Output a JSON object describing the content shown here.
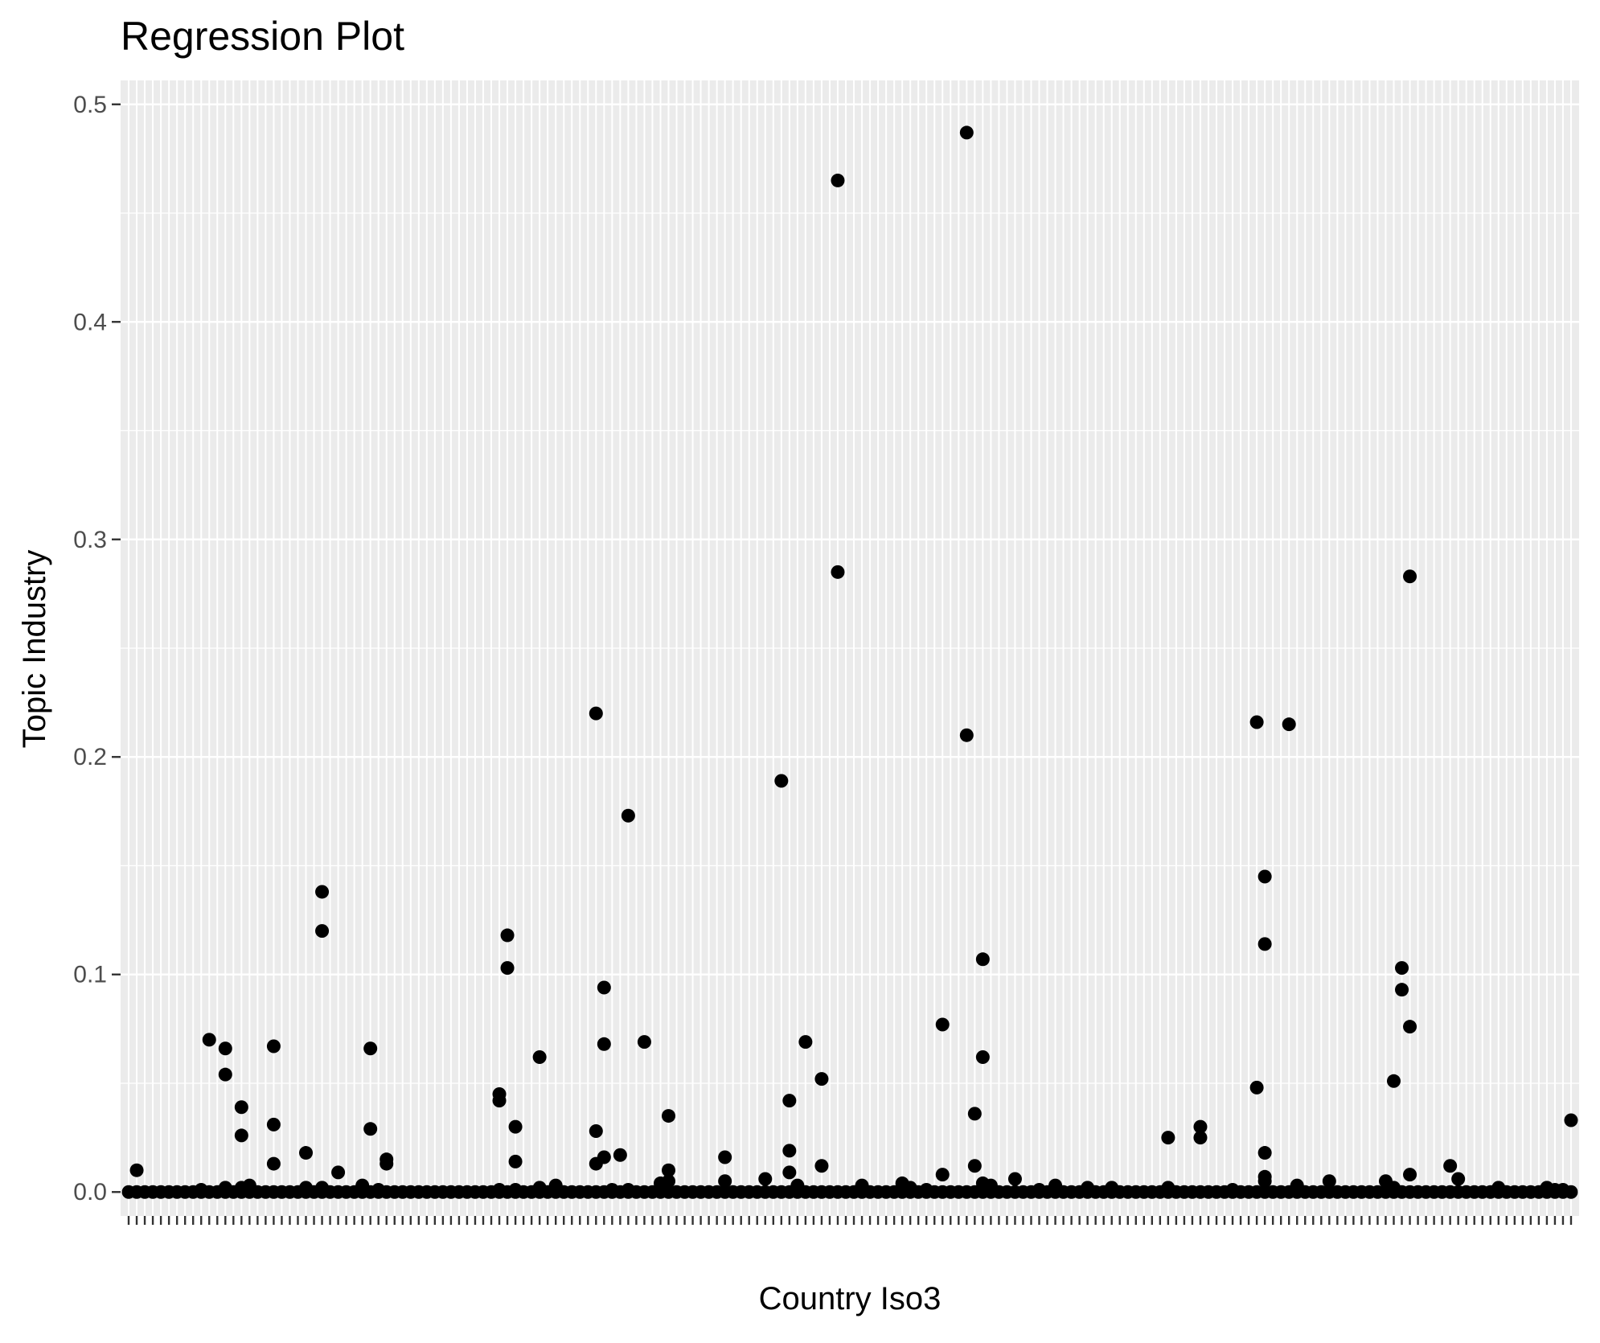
{
  "chart_data": {
    "type": "scatter",
    "title": "Regression Plot",
    "xlabel": "Country Iso3",
    "ylabel": "Topic Industry",
    "x_type": "categorical",
    "category_count": 180,
    "category_labels": [],
    "y_ticks": [
      0.0,
      0.1,
      0.2,
      0.3,
      0.4,
      0.5
    ],
    "y_tick_labels": [
      "0.0",
      "0.1",
      "0.2",
      "0.3",
      "0.4",
      "0.5"
    ],
    "ylim": [
      -0.011,
      0.511
    ],
    "grid": true,
    "legend": "none",
    "colors": {
      "panel_background": "#ebebeb",
      "grid_major": "#ffffff",
      "point": "#000000",
      "tick_label": "#4d4d4d"
    },
    "points": [
      [
        1,
        0.0
      ],
      [
        2,
        0.0
      ],
      [
        2,
        0.01
      ],
      [
        3,
        0.0
      ],
      [
        4,
        0.0
      ],
      [
        5,
        0.0
      ],
      [
        6,
        0.0
      ],
      [
        7,
        0.0
      ],
      [
        8,
        0.0
      ],
      [
        9,
        0.0
      ],
      [
        10,
        0.0
      ],
      [
        10,
        0.001
      ],
      [
        11,
        0.0
      ],
      [
        11,
        0.07
      ],
      [
        12,
        0.0
      ],
      [
        13,
        0.0
      ],
      [
        13,
        0.002
      ],
      [
        13,
        0.054
      ],
      [
        13,
        0.066
      ],
      [
        14,
        0.0
      ],
      [
        15,
        0.0
      ],
      [
        15,
        0.002
      ],
      [
        15,
        0.026
      ],
      [
        15,
        0.039
      ],
      [
        16,
        0.0
      ],
      [
        16,
        0.003
      ],
      [
        17,
        0.0
      ],
      [
        18,
        0.0
      ],
      [
        19,
        0.0
      ],
      [
        19,
        0.013
      ],
      [
        19,
        0.031
      ],
      [
        19,
        0.067
      ],
      [
        20,
        0.0
      ],
      [
        21,
        0.0
      ],
      [
        22,
        0.0
      ],
      [
        23,
        0.0
      ],
      [
        23,
        0.002
      ],
      [
        23,
        0.018
      ],
      [
        24,
        0.0
      ],
      [
        25,
        0.0
      ],
      [
        25,
        0.002
      ],
      [
        25,
        0.12
      ],
      [
        25,
        0.138
      ],
      [
        26,
        0.0
      ],
      [
        27,
        0.0
      ],
      [
        27,
        0.009
      ],
      [
        28,
        0.0
      ],
      [
        29,
        0.0
      ],
      [
        30,
        0.0
      ],
      [
        30,
        0.003
      ],
      [
        31,
        0.0
      ],
      [
        31,
        0.029
      ],
      [
        31,
        0.066
      ],
      [
        32,
        0.0
      ],
      [
        32,
        0.001
      ],
      [
        33,
        0.0
      ],
      [
        33,
        0.013
      ],
      [
        33,
        0.015
      ],
      [
        34,
        0.0
      ],
      [
        35,
        0.0
      ],
      [
        36,
        0.0
      ],
      [
        37,
        0.0
      ],
      [
        38,
        0.0
      ],
      [
        39,
        0.0
      ],
      [
        40,
        0.0
      ],
      [
        41,
        0.0
      ],
      [
        42,
        0.0
      ],
      [
        43,
        0.0
      ],
      [
        44,
        0.0
      ],
      [
        45,
        0.0
      ],
      [
        46,
        0.0
      ],
      [
        47,
        0.0
      ],
      [
        47,
        0.001
      ],
      [
        47,
        0.042
      ],
      [
        47,
        0.045
      ],
      [
        48,
        0.0
      ],
      [
        48,
        0.103
      ],
      [
        48,
        0.118
      ],
      [
        49,
        0.0
      ],
      [
        49,
        0.001
      ],
      [
        49,
        0.014
      ],
      [
        49,
        0.03
      ],
      [
        50,
        0.0
      ],
      [
        51,
        0.0
      ],
      [
        52,
        0.0
      ],
      [
        52,
        0.002
      ],
      [
        52,
        0.062
      ],
      [
        53,
        0.0
      ],
      [
        54,
        0.0
      ],
      [
        54,
        0.003
      ],
      [
        55,
        0.0
      ],
      [
        56,
        0.0
      ],
      [
        57,
        0.0
      ],
      [
        58,
        0.0
      ],
      [
        59,
        0.0
      ],
      [
        59,
        0.013
      ],
      [
        59,
        0.028
      ],
      [
        59,
        0.22
      ],
      [
        60,
        0.0
      ],
      [
        60,
        0.016
      ],
      [
        60,
        0.068
      ],
      [
        60,
        0.094
      ],
      [
        61,
        0.0
      ],
      [
        61,
        0.001
      ],
      [
        62,
        0.0
      ],
      [
        62,
        0.017
      ],
      [
        63,
        0.0
      ],
      [
        63,
        0.001
      ],
      [
        63,
        0.173
      ],
      [
        64,
        0.0
      ],
      [
        65,
        0.0
      ],
      [
        65,
        0.069
      ],
      [
        66,
        0.0
      ],
      [
        67,
        0.0
      ],
      [
        67,
        0.004
      ],
      [
        68,
        0.0
      ],
      [
        68,
        0.005
      ],
      [
        68,
        0.01
      ],
      [
        68,
        0.035
      ],
      [
        69,
        0.0
      ],
      [
        70,
        0.0
      ],
      [
        71,
        0.0
      ],
      [
        72,
        0.0
      ],
      [
        73,
        0.0
      ],
      [
        74,
        0.0
      ],
      [
        75,
        0.0
      ],
      [
        75,
        0.005
      ],
      [
        75,
        0.016
      ],
      [
        76,
        0.0
      ],
      [
        77,
        0.0
      ],
      [
        78,
        0.0
      ],
      [
        79,
        0.0
      ],
      [
        80,
        0.0
      ],
      [
        80,
        0.006
      ],
      [
        81,
        0.0
      ],
      [
        82,
        0.0
      ],
      [
        82,
        0.189
      ],
      [
        83,
        0.0
      ],
      [
        83,
        0.009
      ],
      [
        83,
        0.019
      ],
      [
        83,
        0.042
      ],
      [
        84,
        0.0
      ],
      [
        84,
        0.003
      ],
      [
        85,
        0.0
      ],
      [
        85,
        0.069
      ],
      [
        86,
        0.0
      ],
      [
        87,
        0.0
      ],
      [
        87,
        0.012
      ],
      [
        87,
        0.052
      ],
      [
        88,
        0.0
      ],
      [
        89,
        0.0
      ],
      [
        89,
        0.285
      ],
      [
        89,
        0.465
      ],
      [
        90,
        0.0
      ],
      [
        91,
        0.0
      ],
      [
        92,
        0.0
      ],
      [
        92,
        0.003
      ],
      [
        93,
        0.0
      ],
      [
        94,
        0.0
      ],
      [
        95,
        0.0
      ],
      [
        96,
        0.0
      ],
      [
        97,
        0.0
      ],
      [
        97,
        0.004
      ],
      [
        98,
        0.0
      ],
      [
        98,
        0.002
      ],
      [
        99,
        0.0
      ],
      [
        100,
        0.0
      ],
      [
        100,
        0.001
      ],
      [
        101,
        0.0
      ],
      [
        102,
        0.0
      ],
      [
        102,
        0.008
      ],
      [
        102,
        0.077
      ],
      [
        103,
        0.0
      ],
      [
        104,
        0.0
      ],
      [
        105,
        0.0
      ],
      [
        105,
        0.21
      ],
      [
        105,
        0.487
      ],
      [
        106,
        0.0
      ],
      [
        106,
        0.012
      ],
      [
        106,
        0.036
      ],
      [
        107,
        0.0
      ],
      [
        107,
        0.004
      ],
      [
        107,
        0.062
      ],
      [
        107,
        0.107
      ],
      [
        108,
        0.0
      ],
      [
        108,
        0.003
      ],
      [
        109,
        0.0
      ],
      [
        110,
        0.0
      ],
      [
        111,
        0.0
      ],
      [
        111,
        0.006
      ],
      [
        112,
        0.0
      ],
      [
        113,
        0.0
      ],
      [
        114,
        0.0
      ],
      [
        114,
        0.001
      ],
      [
        115,
        0.0
      ],
      [
        116,
        0.0
      ],
      [
        116,
        0.003
      ],
      [
        117,
        0.0
      ],
      [
        118,
        0.0
      ],
      [
        119,
        0.0
      ],
      [
        120,
        0.0
      ],
      [
        120,
        0.002
      ],
      [
        121,
        0.0
      ],
      [
        122,
        0.0
      ],
      [
        123,
        0.0
      ],
      [
        123,
        0.002
      ],
      [
        124,
        0.0
      ],
      [
        125,
        0.0
      ],
      [
        126,
        0.0
      ],
      [
        127,
        0.0
      ],
      [
        128,
        0.0
      ],
      [
        129,
        0.0
      ],
      [
        130,
        0.0
      ],
      [
        130,
        0.002
      ],
      [
        130,
        0.025
      ],
      [
        131,
        0.0
      ],
      [
        132,
        0.0
      ],
      [
        133,
        0.0
      ],
      [
        134,
        0.0
      ],
      [
        134,
        0.025
      ],
      [
        134,
        0.03
      ],
      [
        135,
        0.0
      ],
      [
        136,
        0.0
      ],
      [
        137,
        0.0
      ],
      [
        138,
        0.0
      ],
      [
        138,
        0.001
      ],
      [
        139,
        0.0
      ],
      [
        140,
        0.0
      ],
      [
        141,
        0.0
      ],
      [
        141,
        0.048
      ],
      [
        141,
        0.216
      ],
      [
        142,
        0.0
      ],
      [
        142,
        0.005
      ],
      [
        142,
        0.007
      ],
      [
        142,
        0.018
      ],
      [
        142,
        0.114
      ],
      [
        142,
        0.145
      ],
      [
        143,
        0.0
      ],
      [
        144,
        0.0
      ],
      [
        145,
        0.0
      ],
      [
        145,
        0.215
      ],
      [
        146,
        0.0
      ],
      [
        146,
        0.003
      ],
      [
        147,
        0.0
      ],
      [
        148,
        0.0
      ],
      [
        149,
        0.0
      ],
      [
        150,
        0.0
      ],
      [
        150,
        0.005
      ],
      [
        151,
        0.0
      ],
      [
        152,
        0.0
      ],
      [
        153,
        0.0
      ],
      [
        154,
        0.0
      ],
      [
        155,
        0.0
      ],
      [
        156,
        0.0
      ],
      [
        157,
        0.0
      ],
      [
        157,
        0.005
      ],
      [
        158,
        0.0
      ],
      [
        158,
        0.002
      ],
      [
        158,
        0.051
      ],
      [
        159,
        0.0
      ],
      [
        159,
        0.093
      ],
      [
        159,
        0.103
      ],
      [
        160,
        0.0
      ],
      [
        160,
        0.008
      ],
      [
        160,
        0.076
      ],
      [
        160,
        0.283
      ],
      [
        161,
        0.0
      ],
      [
        162,
        0.0
      ],
      [
        163,
        0.0
      ],
      [
        164,
        0.0
      ],
      [
        165,
        0.0
      ],
      [
        165,
        0.012
      ],
      [
        166,
        0.0
      ],
      [
        166,
        0.006
      ],
      [
        167,
        0.0
      ],
      [
        168,
        0.0
      ],
      [
        169,
        0.0
      ],
      [
        170,
        0.0
      ],
      [
        171,
        0.0
      ],
      [
        171,
        0.002
      ],
      [
        172,
        0.0
      ],
      [
        173,
        0.0
      ],
      [
        174,
        0.0
      ],
      [
        175,
        0.0
      ],
      [
        176,
        0.0
      ],
      [
        177,
        0.0
      ],
      [
        177,
        0.002
      ],
      [
        178,
        0.0
      ],
      [
        178,
        0.001
      ],
      [
        179,
        0.0
      ],
      [
        179,
        0.001
      ],
      [
        180,
        0.0
      ],
      [
        180,
        0.033
      ]
    ]
  }
}
